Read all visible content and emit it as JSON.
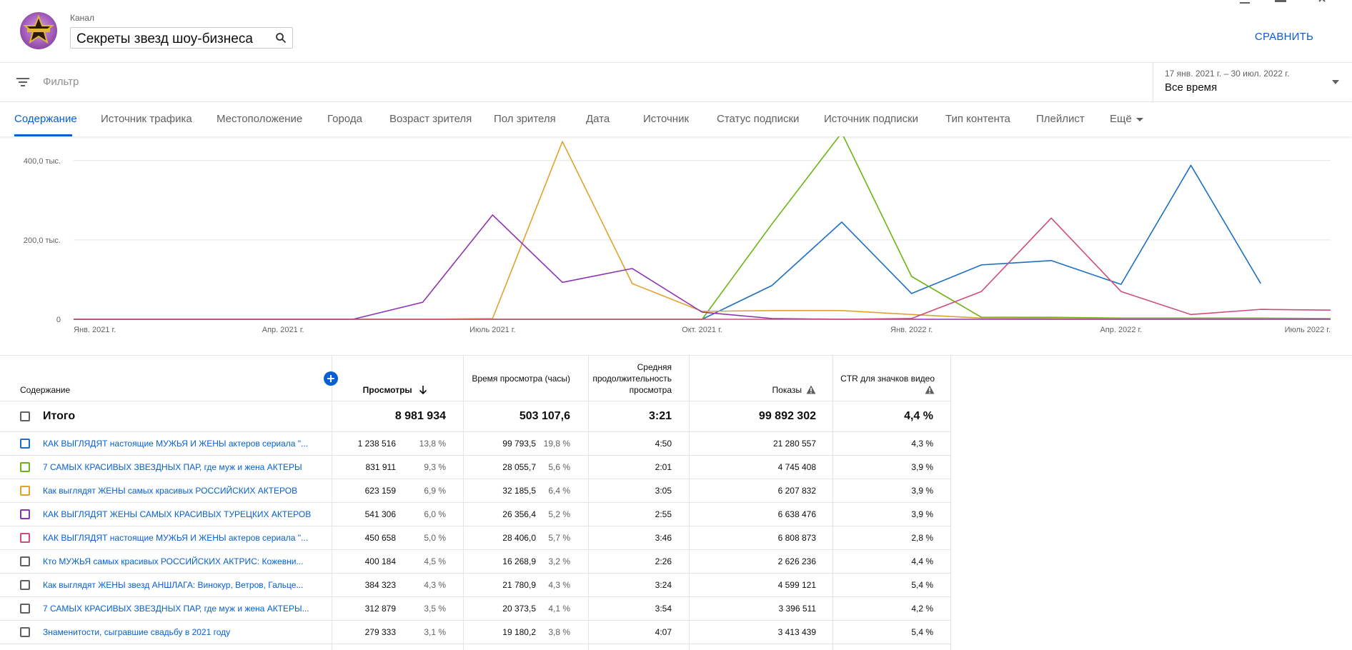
{
  "header": {
    "channel_label": "Канал",
    "channel_name": "Секреты звезд шоу-бизнеса",
    "compare_label": "СРАВНИТЬ"
  },
  "filter": {
    "placeholder": "Фильтр",
    "date_range": "17 янв. 2021 г. – 30 июл. 2022 г.",
    "date_value": "Все время"
  },
  "tabs": [
    {
      "label": "Содержание",
      "active": true
    },
    {
      "label": "Источник трафика"
    },
    {
      "label": "Местоположение"
    },
    {
      "label": "Города"
    },
    {
      "label": "Возраст зрителя"
    },
    {
      "label": "Пол зрителя"
    },
    {
      "label": "Дата"
    },
    {
      "label": "Источник"
    },
    {
      "label": "Статус подписки"
    },
    {
      "label": "Источник подписки"
    },
    {
      "label": "Тип контента"
    },
    {
      "label": "Плейлист"
    },
    {
      "label": "Ещё"
    }
  ],
  "chart_data": {
    "type": "line",
    "x": [
      "Янв. 2021 г.",
      "",
      "",
      "Апр. 2021 г.",
      "",
      "",
      "Июль 2021 г.",
      "",
      "",
      "Окт. 2021 г.",
      "",
      "",
      "Янв. 2022 г.",
      "",
      "",
      "Апр. 2022 г.",
      "",
      "",
      "Июль 2022 г."
    ],
    "x_tick_labels": [
      "Янв. 2021 г.",
      "Апр. 2021 г.",
      "Июль 2021 г.",
      "Окт. 2021 г.",
      "Янв. 2022 г.",
      "Апр. 2022 г.",
      "Июль 2022 г."
    ],
    "y_tick_labels": [
      "0",
      "200,0 тыс.",
      "400,0 тыс."
    ],
    "ylim": [
      0,
      450000
    ],
    "grid": true,
    "series": [
      {
        "color": "#1c6fc4",
        "values": [
          0,
          0,
          0,
          0,
          0,
          0,
          0,
          0,
          0,
          0,
          85000,
          245000,
          65000,
          137000,
          148000,
          88000,
          388000,
          90000,
          null
        ]
      },
      {
        "color": "#6eb314",
        "values": [
          0,
          0,
          0,
          0,
          0,
          0,
          0,
          0,
          0,
          0,
          240000,
          470000,
          108000,
          5000,
          5000,
          3000,
          3000,
          3000,
          2000
        ]
      },
      {
        "color": "#e0a22c",
        "values": [
          0,
          0,
          0,
          0,
          0,
          0,
          2000,
          448000,
          90000,
          20000,
          22000,
          22000,
          12000,
          3000,
          2000,
          1000,
          1000,
          1000,
          1000
        ]
      },
      {
        "color": "#8e33b1",
        "values": [
          0,
          0,
          0,
          0,
          0,
          43000,
          263000,
          93000,
          128000,
          18000,
          2000,
          0,
          0,
          0,
          0,
          0,
          0,
          0,
          0
        ]
      },
      {
        "color": "#cf4c78",
        "values": [
          0,
          0,
          0,
          0,
          0,
          0,
          0,
          0,
          0,
          0,
          0,
          0,
          2000,
          70000,
          255000,
          70000,
          12000,
          25000,
          23000
        ]
      }
    ]
  },
  "table": {
    "headers": {
      "content": "Содержание",
      "views": "Просмотры",
      "watch_time": "Время просмотра (часы)",
      "avg_duration_l1": "Средняя",
      "avg_duration_l2": "продолжительность",
      "avg_duration_l3": "просмотра",
      "impressions": "Показы",
      "ctr": "CTR для значков видео"
    },
    "total": {
      "label": "Итого",
      "views": "8 981 934",
      "watch_time": "503 107,6",
      "avg": "3:21",
      "impressions": "99 892 302",
      "ctr": "4,4 %"
    },
    "rows": [
      {
        "title": "КАК ВЫГЛЯДЯТ настоящие МУЖЬЯ И ЖЕНЫ актеров сериала \"...",
        "views": "1 238 516",
        "views_pct": "13,8 %",
        "watch": "99 793,5",
        "watch_pct": "19,8 %",
        "avg": "4:50",
        "impr": "21 280 557",
        "ctr": "4,3 %",
        "color": "#1c6fc4"
      },
      {
        "title": "7 САМЫХ КРАСИВЫХ ЗВЕЗДНЫХ ПАР, где муж и жена АКТЕРЫ",
        "views": "831 911",
        "views_pct": "9,3 %",
        "watch": "28 055,7",
        "watch_pct": "5,6 %",
        "avg": "2:01",
        "impr": "4 745 408",
        "ctr": "3,9 %",
        "color": "#6eb314"
      },
      {
        "title": "Как выглядят ЖЕНЫ самых красивых РОССИЙСКИХ АКТЕРОВ",
        "views": "623 159",
        "views_pct": "6,9 %",
        "watch": "32 185,5",
        "watch_pct": "6,4 %",
        "avg": "3:05",
        "impr": "6 207 832",
        "ctr": "3,9 %",
        "color": "#e0a22c"
      },
      {
        "title": "КАК ВЫГЛЯДЯТ ЖЕНЫ САМЫХ КРАСИВЫХ ТУРЕЦКИХ АКТЕРОВ",
        "views": "541 306",
        "views_pct": "6,0 %",
        "watch": "26 356,4",
        "watch_pct": "5,2 %",
        "avg": "2:55",
        "impr": "6 638 476",
        "ctr": "3,9 %",
        "color": "#8e33b1"
      },
      {
        "title": "КАК ВЫГЛЯДЯТ настоящие МУЖЬЯ И ЖЕНЫ актеров сериала \"...",
        "views": "450 658",
        "views_pct": "5,0 %",
        "watch": "28 406,0",
        "watch_pct": "5,7 %",
        "avg": "3:46",
        "impr": "6 808 873",
        "ctr": "2,8 %",
        "color": "#cf4c78"
      },
      {
        "title": "Кто МУЖЬЯ самых красивых РОССИЙСКИХ АКТРИС: Кожевни...",
        "views": "400 184",
        "views_pct": "4,5 %",
        "watch": "16 268,9",
        "watch_pct": "3,2 %",
        "avg": "2:26",
        "impr": "2 626 236",
        "ctr": "4,4 %",
        "color": "#606060"
      },
      {
        "title": "Как выглядят ЖЕНЫ звезд АНШЛАГА: Винокур, Ветров, Гальце...",
        "views": "384 323",
        "views_pct": "4,3 %",
        "watch": "21 780,9",
        "watch_pct": "4,3 %",
        "avg": "3:24",
        "impr": "4 599 121",
        "ctr": "5,4 %",
        "color": "#606060"
      },
      {
        "title": "7 САМЫХ КРАСИВЫХ ЗВЕЗДНЫХ ПАР, где муж и жена АКТЕРЫ...",
        "views": "312 879",
        "views_pct": "3,5 %",
        "watch": "20 373,5",
        "watch_pct": "4,1 %",
        "avg": "3:54",
        "impr": "3 396 511",
        "ctr": "4,2 %",
        "color": "#606060"
      },
      {
        "title": "Знаменитости, сыгравшие свадьбу в 2021 году",
        "views": "279 333",
        "views_pct": "3,1 %",
        "watch": "19 180,2",
        "watch_pct": "3,8 %",
        "avg": "4:07",
        "impr": "3 413 439",
        "ctr": "5,4 %",
        "color": "#606060"
      }
    ]
  }
}
